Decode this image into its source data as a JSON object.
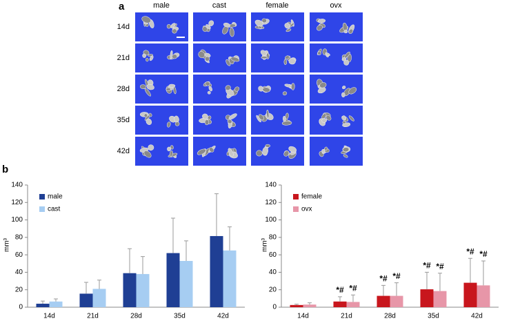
{
  "panel_a": {
    "label": "a",
    "columns": [
      "male",
      "cast",
      "female",
      "ovx"
    ],
    "rows": [
      "14d",
      "21d",
      "28d",
      "35d",
      "42d"
    ]
  },
  "panel_b": {
    "label": "b"
  },
  "chart_data": [
    {
      "type": "bar",
      "ylabel": "mm³",
      "categories": [
        "14d",
        "21d",
        "28d",
        "35d",
        "42d"
      ],
      "series": [
        {
          "name": "male",
          "color": "#1f3f94",
          "values": [
            4,
            15.5,
            39,
            62,
            81.5
          ],
          "errors": [
            3,
            13,
            28,
            40,
            48.5
          ]
        },
        {
          "name": "cast",
          "color": "#a6cdf2",
          "values": [
            6.5,
            21,
            38,
            53,
            65
          ],
          "errors": [
            3,
            10,
            20,
            23,
            27
          ]
        }
      ],
      "ylim": [
        0,
        140
      ],
      "yticks": [
        0,
        20,
        40,
        60,
        80,
        100,
        120,
        140
      ],
      "legend": "upper-left"
    },
    {
      "type": "bar",
      "ylabel": "mm³",
      "categories": [
        "14d",
        "21d",
        "28d",
        "35d",
        "42d"
      ],
      "series": [
        {
          "name": "female",
          "color": "#c8161d",
          "values": [
            2.5,
            6.5,
            13,
            20.5,
            28
          ],
          "errors": [
            1,
            5.5,
            12,
            19.5,
            28
          ],
          "markers": [
            null,
            "*#",
            "*#",
            "*#",
            "*#"
          ]
        },
        {
          "name": "ovx",
          "color": "#e796a8",
          "values": [
            3,
            6,
            13,
            18.5,
            25
          ],
          "errors": [
            2,
            8,
            15,
            20.5,
            28
          ],
          "markers": [
            null,
            "*#",
            "*#",
            "*#",
            "*#"
          ]
        }
      ],
      "ylim": [
        0,
        140
      ],
      "yticks": [
        0,
        20,
        40,
        60,
        80,
        100,
        120,
        140
      ],
      "legend": "upper-left"
    }
  ]
}
